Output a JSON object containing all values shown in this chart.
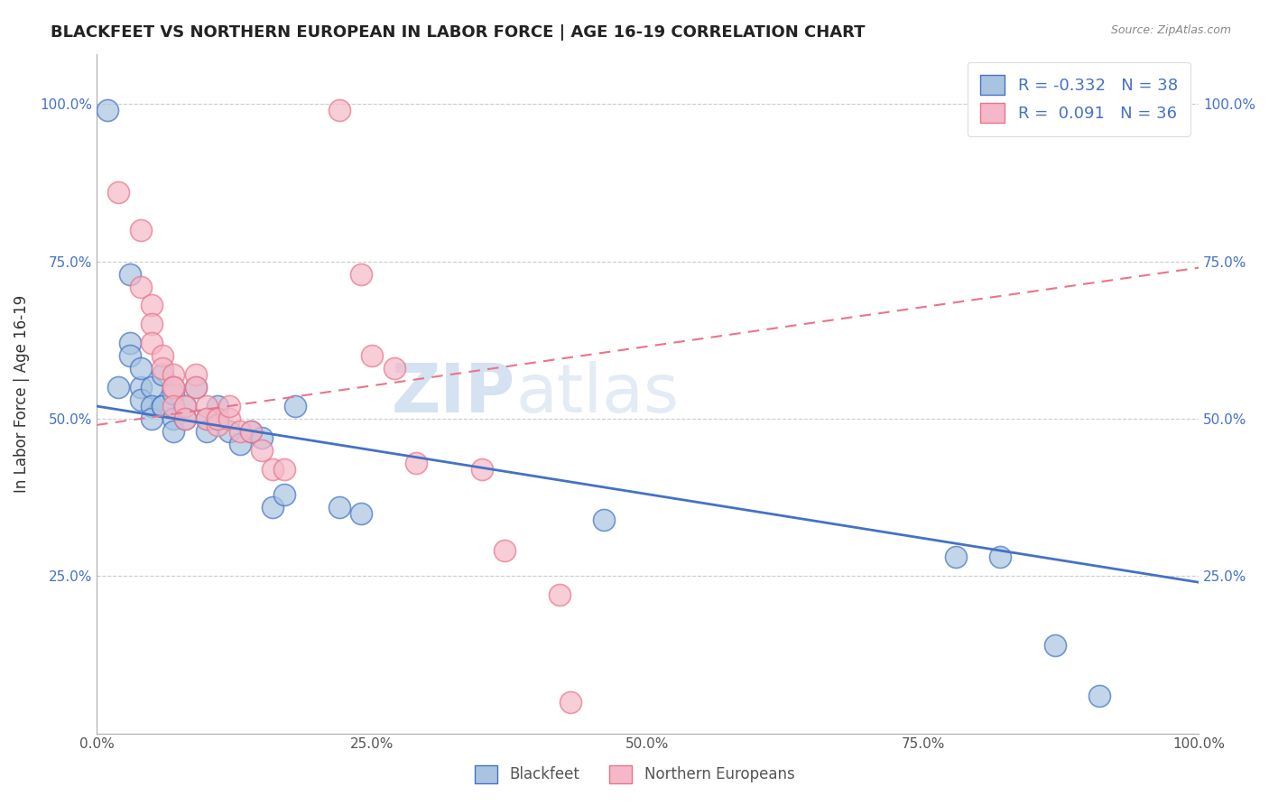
{
  "title": "BLACKFEET VS NORTHERN EUROPEAN IN LABOR FORCE | AGE 16-19 CORRELATION CHART",
  "source": "Source: ZipAtlas.com",
  "xlabel": "",
  "ylabel": "In Labor Force | Age 16-19",
  "xlim": [
    0.0,
    1.0
  ],
  "ylim": [
    0.0,
    1.08
  ],
  "xtick_labels": [
    "0.0%",
    "25.0%",
    "50.0%",
    "75.0%",
    "100.0%"
  ],
  "xtick_vals": [
    0.0,
    0.25,
    0.5,
    0.75,
    1.0
  ],
  "ytick_labels": [
    "25.0%",
    "50.0%",
    "75.0%",
    "100.0%"
  ],
  "ytick_vals": [
    0.25,
    0.5,
    0.75,
    1.0
  ],
  "legend_blue_label": "R = -0.332   N = 38",
  "legend_pink_label": "R =  0.091   N = 36",
  "legend_blue_color": "#a8c4e0",
  "legend_pink_color": "#f4b8c8",
  "blue_color": "#4472C4",
  "pink_color": "#E9748A",
  "blue_scatter": [
    [
      0.01,
      0.99
    ],
    [
      0.03,
      0.73
    ],
    [
      0.02,
      0.55
    ],
    [
      0.03,
      0.62
    ],
    [
      0.03,
      0.6
    ],
    [
      0.04,
      0.55
    ],
    [
      0.04,
      0.53
    ],
    [
      0.04,
      0.58
    ],
    [
      0.05,
      0.55
    ],
    [
      0.05,
      0.52
    ],
    [
      0.05,
      0.5
    ],
    [
      0.06,
      0.52
    ],
    [
      0.06,
      0.52
    ],
    [
      0.06,
      0.57
    ],
    [
      0.07,
      0.54
    ],
    [
      0.07,
      0.5
    ],
    [
      0.07,
      0.48
    ],
    [
      0.08,
      0.52
    ],
    [
      0.08,
      0.5
    ],
    [
      0.09,
      0.55
    ],
    [
      0.1,
      0.5
    ],
    [
      0.1,
      0.48
    ],
    [
      0.11,
      0.52
    ],
    [
      0.11,
      0.5
    ],
    [
      0.12,
      0.48
    ],
    [
      0.13,
      0.46
    ],
    [
      0.14,
      0.48
    ],
    [
      0.15,
      0.47
    ],
    [
      0.16,
      0.36
    ],
    [
      0.17,
      0.38
    ],
    [
      0.18,
      0.52
    ],
    [
      0.22,
      0.36
    ],
    [
      0.24,
      0.35
    ],
    [
      0.46,
      0.34
    ],
    [
      0.78,
      0.28
    ],
    [
      0.82,
      0.28
    ],
    [
      0.87,
      0.14
    ],
    [
      0.91,
      0.06
    ]
  ],
  "pink_scatter": [
    [
      0.02,
      0.86
    ],
    [
      0.04,
      0.8
    ],
    [
      0.04,
      0.71
    ],
    [
      0.05,
      0.68
    ],
    [
      0.05,
      0.65
    ],
    [
      0.05,
      0.62
    ],
    [
      0.06,
      0.6
    ],
    [
      0.06,
      0.58
    ],
    [
      0.07,
      0.57
    ],
    [
      0.07,
      0.55
    ],
    [
      0.07,
      0.55
    ],
    [
      0.07,
      0.52
    ],
    [
      0.08,
      0.52
    ],
    [
      0.08,
      0.5
    ],
    [
      0.09,
      0.57
    ],
    [
      0.09,
      0.55
    ],
    [
      0.1,
      0.52
    ],
    [
      0.1,
      0.5
    ],
    [
      0.11,
      0.49
    ],
    [
      0.11,
      0.5
    ],
    [
      0.12,
      0.5
    ],
    [
      0.12,
      0.52
    ],
    [
      0.13,
      0.48
    ],
    [
      0.14,
      0.48
    ],
    [
      0.15,
      0.45
    ],
    [
      0.16,
      0.42
    ],
    [
      0.17,
      0.42
    ],
    [
      0.22,
      0.99
    ],
    [
      0.24,
      0.73
    ],
    [
      0.25,
      0.6
    ],
    [
      0.27,
      0.58
    ],
    [
      0.29,
      0.43
    ],
    [
      0.35,
      0.42
    ],
    [
      0.37,
      0.29
    ],
    [
      0.42,
      0.22
    ],
    [
      0.43,
      0.05
    ]
  ],
  "blue_line": [
    [
      0.0,
      0.52
    ],
    [
      1.0,
      0.24
    ]
  ],
  "pink_line": [
    [
      0.0,
      0.49
    ],
    [
      1.0,
      0.74
    ]
  ],
  "title_fontsize": 13,
  "axis_label_fontsize": 12,
  "tick_fontsize": 11
}
